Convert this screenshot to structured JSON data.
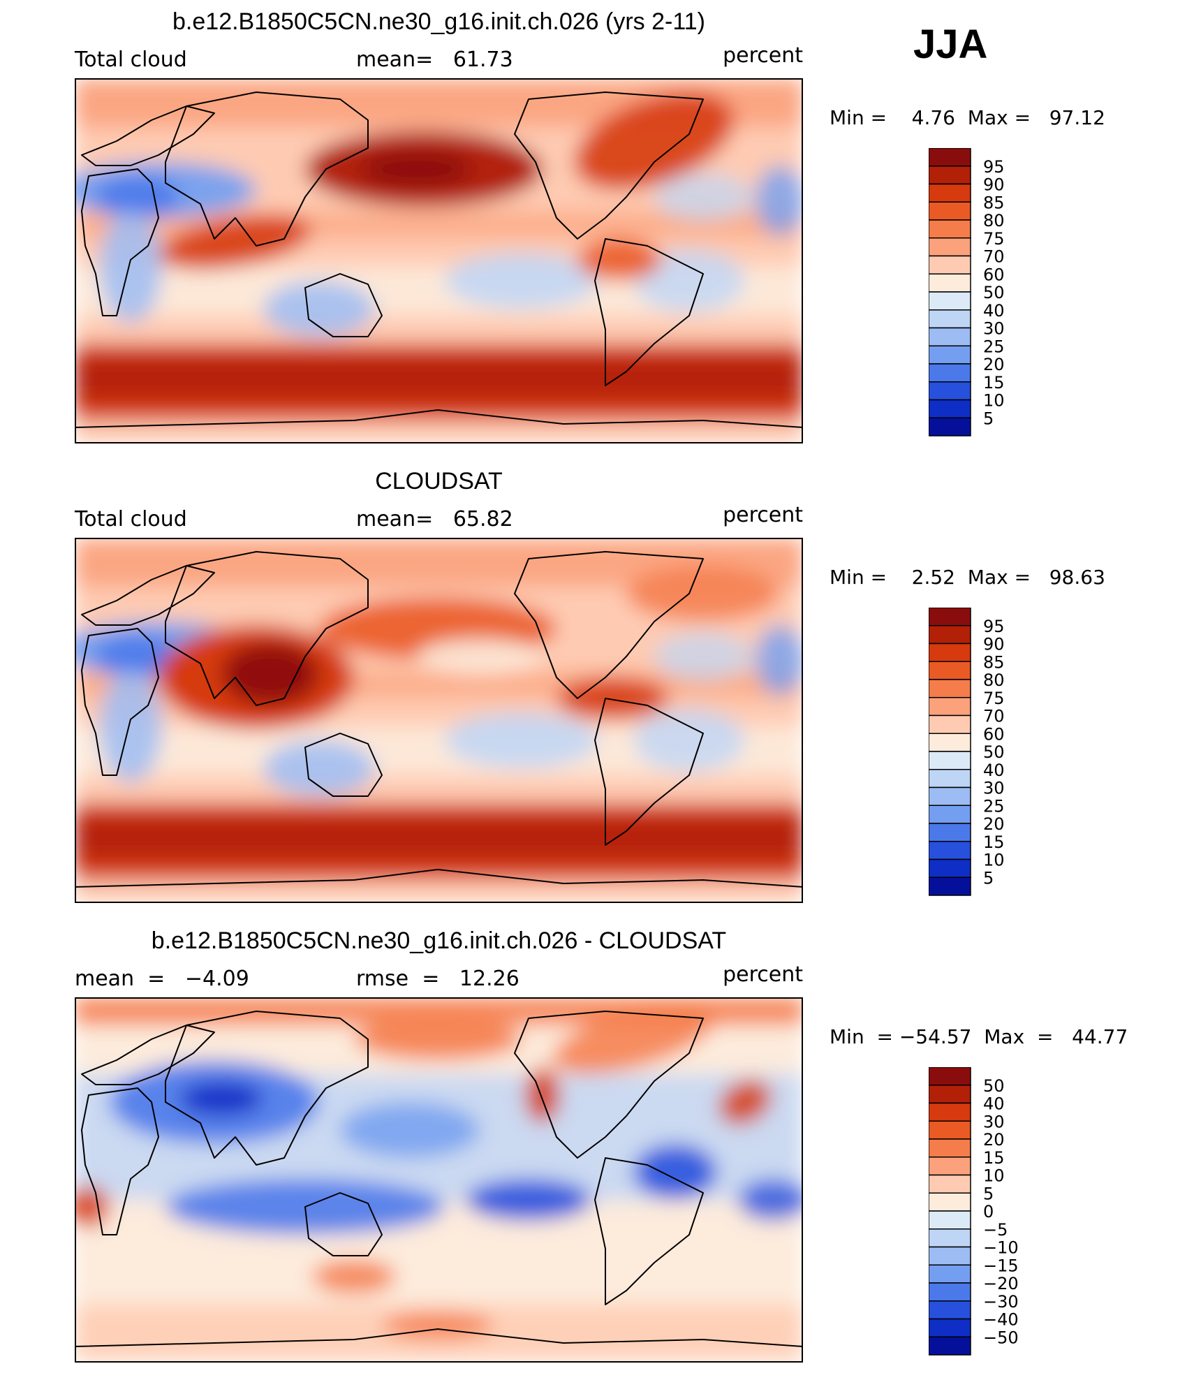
{
  "season": "JJA",
  "units": "percent",
  "chart_data": [
    {
      "type": "heatmap",
      "title": "b.e12.B1850C5CN.ne30_g16.init.ch.026 (yrs 2-11)",
      "left_label": "Total cloud",
      "center_label": "mean=   61.73",
      "right_label": "percent",
      "mean": 61.73,
      "min_max_label": "Min =    4.76  Max =   97.12",
      "min": 4.76,
      "max": 97.12,
      "colorbar": {
        "levels": [
          "95",
          "90",
          "85",
          "80",
          "75",
          "70",
          "60",
          "50",
          "40",
          "30",
          "25",
          "20",
          "15",
          "10",
          "5"
        ],
        "colors": [
          "#8a0d0d",
          "#b22008",
          "#d63a0e",
          "#ea5a25",
          "#f57d4b",
          "#fba27c",
          "#fecbb2",
          "#fdebdc",
          "#dceaf8",
          "#bed5f6",
          "#9cbcf3",
          "#749ff0",
          "#4b79ea",
          "#2750dd",
          "#0e2ec5",
          "#05109a"
        ]
      }
    },
    {
      "type": "heatmap",
      "title": "CLOUDSAT",
      "left_label": "Total cloud",
      "center_label": "mean=   65.82",
      "right_label": "percent",
      "mean": 65.82,
      "min_max_label": "Min =    2.52  Max =   98.63",
      "min": 2.52,
      "max": 98.63,
      "colorbar": {
        "levels": [
          "95",
          "90",
          "85",
          "80",
          "75",
          "70",
          "60",
          "50",
          "40",
          "30",
          "25",
          "20",
          "15",
          "10",
          "5"
        ],
        "colors": [
          "#8a0d0d",
          "#b22008",
          "#d63a0e",
          "#ea5a25",
          "#f57d4b",
          "#fba27c",
          "#fecbb2",
          "#fdebdc",
          "#dceaf8",
          "#bed5f6",
          "#9cbcf3",
          "#749ff0",
          "#4b79ea",
          "#2750dd",
          "#0e2ec5",
          "#05109a"
        ]
      }
    },
    {
      "type": "heatmap",
      "title": "b.e12.B1850C5CN.ne30_g16.init.ch.026 - CLOUDSAT",
      "left_label": "mean  =   −4.09",
      "center_label": "rmse  =   12.26",
      "right_label": "percent",
      "mean": -4.09,
      "rmse": 12.26,
      "min_max_label": "Min  = −54.57  Max  =   44.77",
      "min": -54.57,
      "max": 44.77,
      "colorbar": {
        "levels": [
          "50",
          "40",
          "30",
          "20",
          "15",
          "10",
          "5",
          "0",
          "−5",
          "−10",
          "−15",
          "−20",
          "−30",
          "−40",
          "−50"
        ],
        "colors": [
          "#8a0d0d",
          "#b22008",
          "#d63a0e",
          "#ea5a25",
          "#f57d4b",
          "#fba27c",
          "#fecbb2",
          "#fdebdc",
          "#dceaf8",
          "#bed5f6",
          "#9cbcf3",
          "#749ff0",
          "#4b79ea",
          "#2750dd",
          "#0e2ec5",
          "#05109a"
        ]
      }
    }
  ]
}
